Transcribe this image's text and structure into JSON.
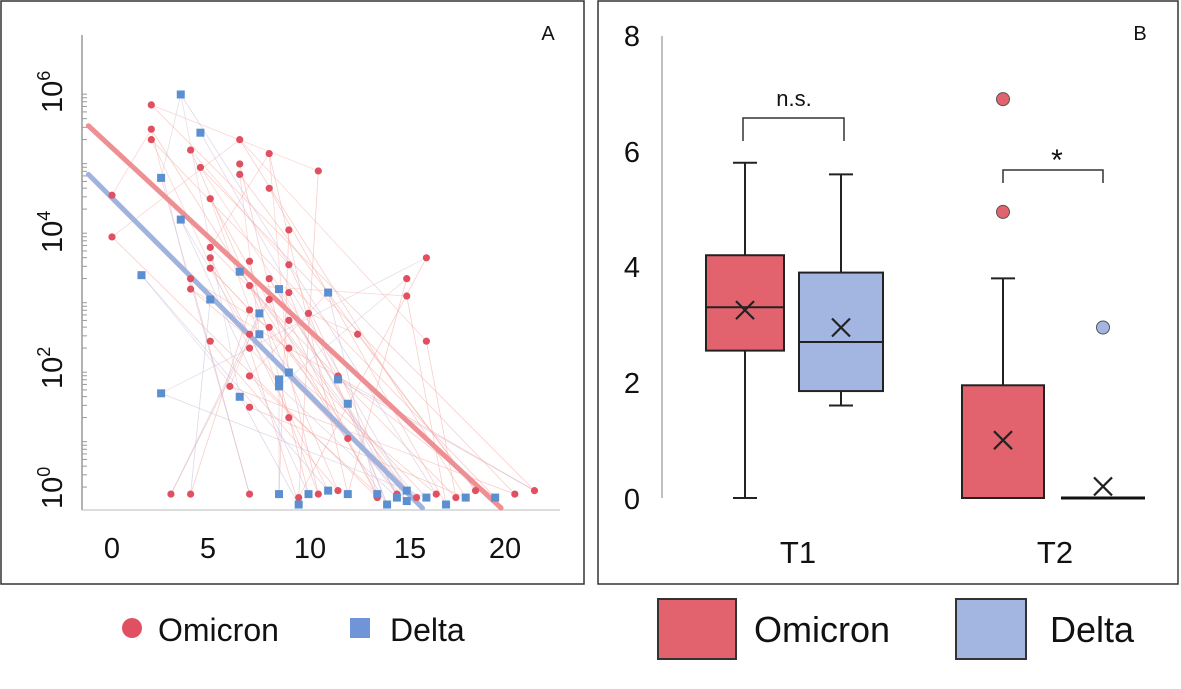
{
  "chart_data": [
    {
      "panel_label": "A",
      "type": "scatter",
      "x_ticks": [
        "0",
        "5",
        "10",
        "15",
        "20"
      ],
      "y_ticks": [
        {
          "base": "10",
          "exp": "0",
          "value": 0
        },
        {
          "base": "10",
          "exp": "2",
          "value": 2
        },
        {
          "base": "10",
          "exp": "4",
          "value": 4
        },
        {
          "base": "10",
          "exp": "6",
          "value": 6
        }
      ],
      "xlim": [
        -1.2,
        22
      ],
      "ylim": [
        0,
        6.5
      ],
      "y_scale": "log10",
      "series": [
        {
          "name": "Omicron",
          "color": "#e05060",
          "marker": "circle",
          "points": [
            [
              0,
              4.5
            ],
            [
              0,
              3.9
            ],
            [
              2,
              5.8
            ],
            [
              2,
              5.45
            ],
            [
              2,
              5.3
            ],
            [
              4,
              5.15
            ],
            [
              4.5,
              4.9
            ],
            [
              5,
              4.45
            ],
            [
              6.5,
              5.3
            ],
            [
              6.5,
              4.95
            ],
            [
              6.5,
              4.8
            ],
            [
              8,
              5.1
            ],
            [
              8,
              4.6
            ],
            [
              10.5,
              4.85
            ],
            [
              5,
              3.75
            ],
            [
              5,
              3.6
            ],
            [
              5,
              3.45
            ],
            [
              4,
              3.3
            ],
            [
              4,
              3.15
            ],
            [
              7,
              3.55
            ],
            [
              7,
              3.2
            ],
            [
              7,
              2.85
            ],
            [
              7,
              2.5
            ],
            [
              7,
              2.3
            ],
            [
              8,
              3.3
            ],
            [
              8,
              3.0
            ],
            [
              8,
              2.6
            ],
            [
              9,
              4.0
            ],
            [
              9,
              3.5
            ],
            [
              9,
              3.1
            ],
            [
              9,
              2.7
            ],
            [
              9,
              2.3
            ],
            [
              10,
              2.8
            ],
            [
              11.5,
              1.9
            ],
            [
              5,
              2.4
            ],
            [
              6,
              1.75
            ],
            [
              7,
              1.9
            ],
            [
              7,
              1.45
            ],
            [
              9,
              1.3
            ],
            [
              12,
              1.0
            ],
            [
              12.5,
              2.5
            ],
            [
              15,
              3.3
            ],
            [
              15,
              3.05
            ],
            [
              16,
              3.6
            ],
            [
              16,
              2.4
            ],
            [
              3,
              0.2
            ],
            [
              4,
              0.2
            ],
            [
              7,
              0.2
            ],
            [
              9.5,
              0.15
            ],
            [
              10.5,
              0.2
            ],
            [
              11.5,
              0.25
            ],
            [
              13.5,
              0.15
            ],
            [
              14.5,
              0.2
            ],
            [
              15.5,
              0.15
            ],
            [
              16.5,
              0.2
            ],
            [
              17.5,
              0.15
            ],
            [
              18.5,
              0.25
            ],
            [
              20.5,
              0.2
            ],
            [
              21.5,
              0.25
            ]
          ]
        },
        {
          "name": "Delta",
          "color": "#5b8fd0",
          "marker": "square",
          "points": [
            [
              1.5,
              3.35
            ],
            [
              2.5,
              1.65
            ],
            [
              2.5,
              4.75
            ],
            [
              3.5,
              5.95
            ],
            [
              3.5,
              4.15
            ],
            [
              4.5,
              5.4
            ],
            [
              5,
              3.0
            ],
            [
              6.5,
              3.4
            ],
            [
              6.5,
              1.6
            ],
            [
              7.5,
              2.5
            ],
            [
              7.5,
              2.8
            ],
            [
              8.5,
              3.15
            ],
            [
              8.5,
              1.85
            ],
            [
              8.5,
              1.75
            ],
            [
              9,
              1.95
            ],
            [
              11,
              3.1
            ],
            [
              11.5,
              1.85
            ],
            [
              12,
              1.5
            ],
            [
              8.5,
              0.2
            ],
            [
              9.5,
              0.05
            ],
            [
              10,
              0.2
            ],
            [
              11,
              0.25
            ],
            [
              12,
              0.2
            ],
            [
              13.5,
              0.2
            ],
            [
              14,
              0.05
            ],
            [
              14.5,
              0.15
            ],
            [
              15,
              0.1
            ],
            [
              15,
              0.25
            ],
            [
              16,
              0.15
            ],
            [
              17,
              0.05
            ],
            [
              18,
              0.15
            ],
            [
              19.5,
              0.15
            ]
          ]
        }
      ],
      "trend_lines": [
        {
          "series": "Omicron",
          "from": [
            -1.2,
            5.5
          ],
          "to": [
            19.8,
            0.0
          ]
        },
        {
          "series": "Delta",
          "from": [
            -1.2,
            4.8
          ],
          "to": [
            15.8,
            0.0
          ]
        }
      ],
      "legend": [
        {
          "label": "Omicron",
          "marker": "circle",
          "color": "#e05060"
        },
        {
          "label": "Delta",
          "marker": "square",
          "color": "#5b8fd0"
        }
      ]
    },
    {
      "panel_label": "B",
      "type": "box",
      "ylim": [
        0,
        8
      ],
      "y_ticks": [
        "0",
        "2",
        "4",
        "6",
        "8"
      ],
      "groups": [
        {
          "category": "T1",
          "boxes": [
            {
              "series": "Omicron",
              "color": "#e2636d",
              "min": 0,
              "q1": 2.55,
              "median": 3.3,
              "q3": 4.2,
              "max": 5.8,
              "mean": 3.25,
              "outliers": []
            },
            {
              "series": "Delta",
              "color": "#a3b6e2",
              "min": 1.6,
              "q1": 1.85,
              "median": 2.7,
              "q3": 3.9,
              "max": 5.6,
              "mean": 2.95,
              "outliers": []
            }
          ],
          "annotation": {
            "text": "n.s."
          }
        },
        {
          "category": "T2",
          "boxes": [
            {
              "series": "Omicron",
              "color": "#e2636d",
              "min": 0,
              "q1": 0,
              "median": 0,
              "q3": 1.95,
              "max": 3.8,
              "mean": 1.0,
              "outliers": [
                4.95,
                6.9
              ]
            },
            {
              "series": "Delta",
              "color": "#a3b6e2",
              "min": 0,
              "q1": 0,
              "median": 0,
              "q3": 0,
              "max": 0,
              "mean": 0.2,
              "outliers": [
                2.95
              ]
            }
          ],
          "annotation": {
            "text": "*"
          }
        }
      ],
      "legend": [
        {
          "label": "Omicron",
          "color": "#e2636d"
        },
        {
          "label": "Delta",
          "color": "#a3b6e2"
        }
      ]
    }
  ]
}
